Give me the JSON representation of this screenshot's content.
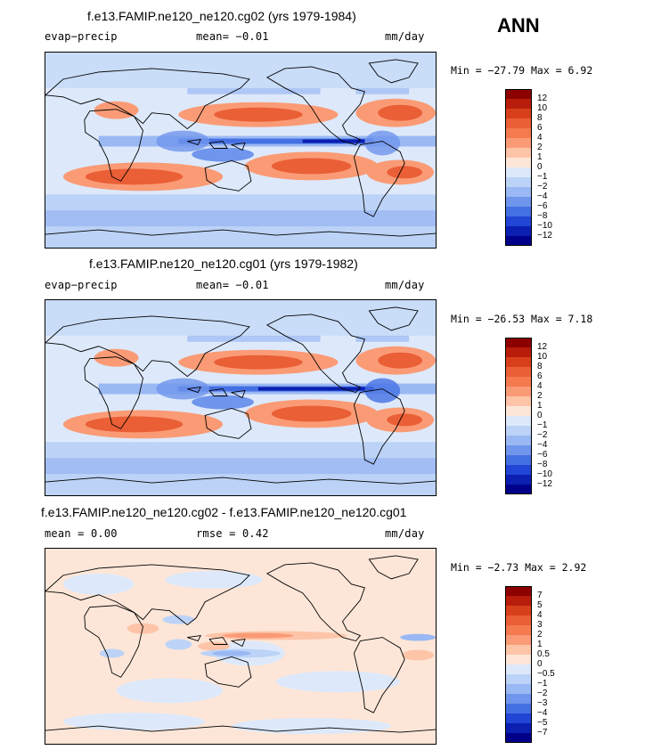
{
  "season_label": "ANN",
  "panels": [
    {
      "title": "f.e13.FAMIP.ne120_ne120.cg02 (yrs 1979-1984)",
      "left_label": "evap−precip",
      "center_label": "mean=   −0.01",
      "right_label": "mm/day",
      "min_max": "Min = −27.79 Max =    6.92",
      "colorbar_labels": [
        "12",
        "10",
        "8",
        "6",
        "4",
        "2",
        "1",
        "0",
        "−1",
        "−2",
        "−4",
        "−6",
        "−8",
        "−10",
        "−12"
      ]
    },
    {
      "title": "f.e13.FAMIP.ne120_ne120.cg01 (yrs 1979-1982)",
      "left_label": "evap−precip",
      "center_label": "mean=   −0.01",
      "right_label": "mm/day",
      "min_max": "Min = −26.53 Max =    7.18",
      "colorbar_labels": [
        "12",
        "10",
        "8",
        "6",
        "4",
        "2",
        "1",
        "0",
        "−1",
        "−2",
        "−4",
        "−6",
        "−8",
        "−10",
        "−12"
      ]
    },
    {
      "title": "f.e13.FAMIP.ne120_ne120.cg02 - f.e13.FAMIP.ne120_ne120.cg01",
      "left_label": "mean =    0.00",
      "center_label": "rmse =    0.42",
      "right_label": "mm/day",
      "min_max": "Min =  −2.73 Max =    2.92",
      "colorbar_labels": [
        "7",
        "5",
        "4",
        "3",
        "2",
        "1",
        "0.5",
        "0",
        "−0.5",
        "−1",
        "−2",
        "−3",
        "−4",
        "−5",
        "−7"
      ]
    }
  ],
  "colors": {
    "scale": [
      "#8c0000",
      "#b81c0a",
      "#d8401c",
      "#ea5f36",
      "#f57a50",
      "#fa9b76",
      "#fdc4a8",
      "#fde6d8",
      "#dde9fb",
      "#bcd3f7",
      "#9ab8f3",
      "#6f95ec",
      "#4570e3",
      "#2145d4",
      "#0b1fb0",
      "#00008a"
    ]
  }
}
